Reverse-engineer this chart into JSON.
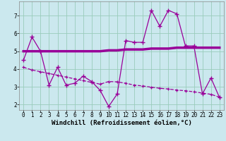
{
  "xlabel": "Windchill (Refroidissement éolien,°C)",
  "background_color": "#cbe8ee",
  "grid_color": "#99ccbb",
  "line_color": "#990099",
  "hours": [
    0,
    1,
    2,
    3,
    4,
    5,
    6,
    7,
    8,
    9,
    10,
    11,
    12,
    13,
    14,
    15,
    16,
    17,
    18,
    19,
    20,
    21,
    22,
    23
  ],
  "series1": [
    4.5,
    5.8,
    5.0,
    3.1,
    4.1,
    3.1,
    3.2,
    3.6,
    3.3,
    2.8,
    1.9,
    2.6,
    5.6,
    5.5,
    5.5,
    7.3,
    6.4,
    7.3,
    7.1,
    5.3,
    5.3,
    2.6,
    3.5,
    2.4
  ],
  "series_trend": [
    4.1,
    3.95,
    3.85,
    3.75,
    3.65,
    3.55,
    3.45,
    3.35,
    3.25,
    3.15,
    3.3,
    3.28,
    3.2,
    3.1,
    3.05,
    2.98,
    2.92,
    2.88,
    2.82,
    2.78,
    2.72,
    2.65,
    2.58,
    2.42
  ],
  "series_mean": [
    5.0,
    5.0,
    5.0,
    5.0,
    5.0,
    5.0,
    5.0,
    5.0,
    5.0,
    5.0,
    5.05,
    5.05,
    5.1,
    5.1,
    5.1,
    5.15,
    5.15,
    5.15,
    5.2,
    5.2,
    5.2,
    5.2,
    5.2,
    5.2
  ],
  "ylim": [
    1.7,
    7.8
  ],
  "xlim": [
    -0.5,
    23.5
  ],
  "xticks": [
    0,
    1,
    2,
    3,
    4,
    5,
    6,
    7,
    8,
    9,
    10,
    11,
    12,
    13,
    14,
    15,
    16,
    17,
    18,
    19,
    20,
    21,
    22,
    23
  ],
  "yticks": [
    2,
    3,
    4,
    5,
    6,
    7
  ],
  "tick_fontsize": 5.5,
  "xlabel_fontsize": 6.5
}
